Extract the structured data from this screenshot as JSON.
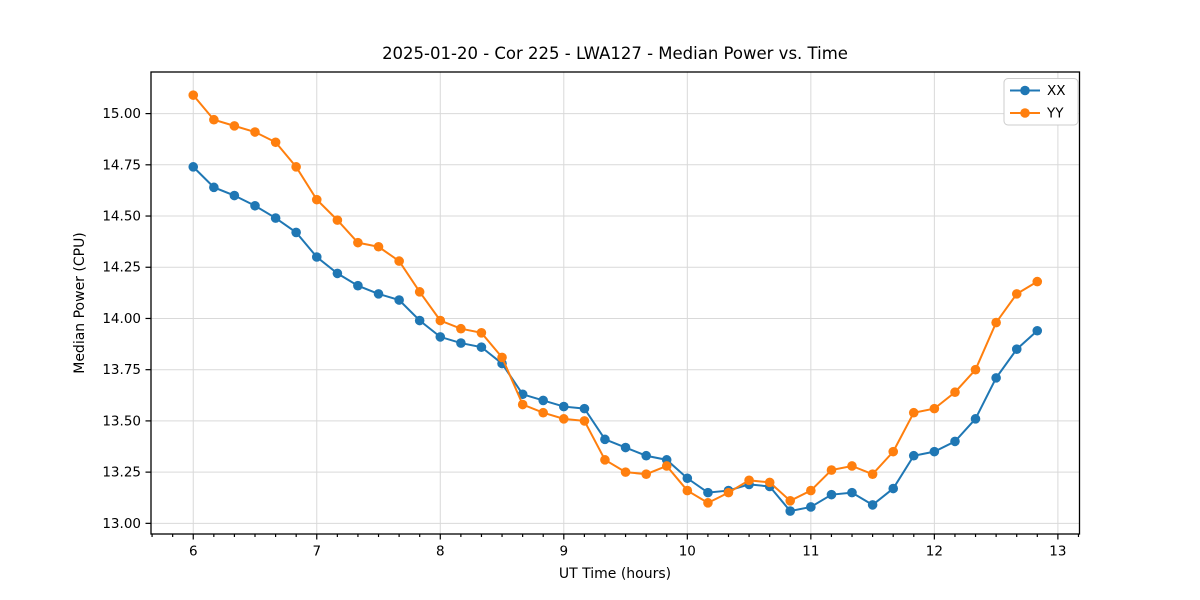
{
  "chart_data": {
    "type": "line",
    "title": "2025-01-20 - Cor 225 - LWA127 - Median Power vs. Time",
    "xlabel": "UT Time (hours)",
    "ylabel": "Median Power (CPU)",
    "x": [
      6.0,
      6.167,
      6.333,
      6.5,
      6.667,
      6.833,
      7.0,
      7.167,
      7.333,
      7.5,
      7.667,
      7.833,
      8.0,
      8.167,
      8.333,
      8.5,
      8.667,
      8.833,
      9.0,
      9.167,
      9.333,
      9.5,
      9.667,
      9.833,
      10.0,
      10.167,
      10.333,
      10.5,
      10.667,
      10.833,
      11.0,
      11.167,
      11.333,
      11.5,
      11.667,
      11.833,
      12.0,
      12.167,
      12.333,
      12.5,
      12.667,
      12.833
    ],
    "series": [
      {
        "name": "XX",
        "color": "#1f77b4",
        "values": [
          14.74,
          14.64,
          14.6,
          14.55,
          14.49,
          14.42,
          14.3,
          14.22,
          14.16,
          14.12,
          14.09,
          13.99,
          13.91,
          13.88,
          13.86,
          13.78,
          13.63,
          13.6,
          13.57,
          13.56,
          13.41,
          13.37,
          13.33,
          13.31,
          13.22,
          13.15,
          13.16,
          13.19,
          13.18,
          13.06,
          13.08,
          13.14,
          13.15,
          13.09,
          13.17,
          13.33,
          13.35,
          13.4,
          13.51,
          13.71,
          13.85,
          13.94
        ]
      },
      {
        "name": "YY",
        "color": "#ff7f0e",
        "values": [
          15.09,
          14.97,
          14.94,
          14.91,
          14.86,
          14.74,
          14.58,
          14.48,
          14.37,
          14.35,
          14.28,
          14.13,
          13.99,
          13.95,
          13.93,
          13.81,
          13.58,
          13.54,
          13.51,
          13.5,
          13.31,
          13.25,
          13.24,
          13.28,
          13.16,
          13.1,
          13.15,
          13.21,
          13.2,
          13.11,
          13.16,
          13.26,
          13.28,
          13.24,
          13.35,
          13.54,
          13.56,
          13.64,
          13.75,
          13.98,
          14.12,
          14.18
        ]
      }
    ],
    "xlim": [
      5.658,
      13.175
    ],
    "ylim": [
      12.948,
      15.203
    ],
    "x_ticks": [
      6,
      7,
      8,
      9,
      10,
      11,
      12,
      13
    ],
    "x_tick_labels": [
      "6",
      "7",
      "8",
      "9",
      "10",
      "11",
      "12",
      "13"
    ],
    "x_minor_tick_step": 0.16667,
    "y_ticks": [
      13.0,
      13.25,
      13.5,
      13.75,
      14.0,
      14.25,
      14.5,
      14.75,
      15.0
    ],
    "y_tick_labels": [
      "13.00",
      "13.25",
      "13.50",
      "13.75",
      "14.00",
      "14.25",
      "14.50",
      "14.75",
      "15.00"
    ],
    "grid": true,
    "marker": "circle",
    "legend": {
      "position": "upper right",
      "entries": [
        "XX",
        "YY"
      ]
    }
  }
}
